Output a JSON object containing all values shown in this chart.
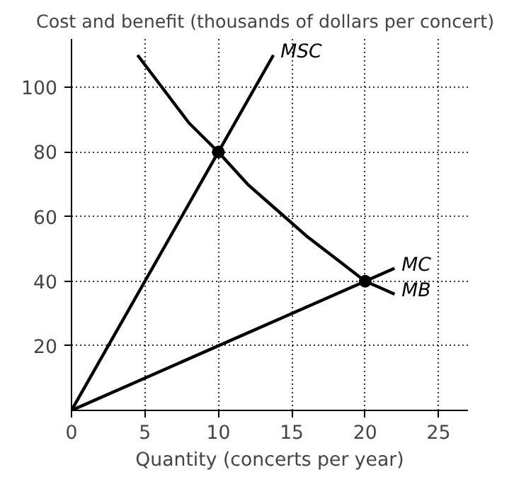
{
  "chart_data": {
    "type": "line",
    "title": "Cost and benefit (thousands of dollars per concert)",
    "xlabel": "Quantity (concerts per year)",
    "xlim": [
      0,
      27
    ],
    "ylim": [
      0,
      115
    ],
    "xticks": [
      0,
      5,
      10,
      15,
      20,
      25
    ],
    "yticks": [
      20,
      40,
      60,
      80,
      100
    ],
    "grid": true,
    "line_style": "solid",
    "marker": "none",
    "series": [
      {
        "name": "MSC",
        "color": "#000000",
        "x": [
          0,
          13.75
        ],
        "values": [
          0,
          110
        ]
      },
      {
        "name": "MC",
        "color": "#000000",
        "x": [
          0,
          22
        ],
        "values": [
          0,
          44
        ]
      },
      {
        "name": "MB",
        "color": "#000000",
        "x": [
          4.5,
          6,
          8,
          10,
          12,
          14,
          16,
          18,
          20,
          21,
          22
        ],
        "values": [
          110,
          101,
          89,
          80,
          70,
          62,
          54,
          47,
          40,
          38,
          36
        ]
      },
      {
        "type": "scatter",
        "marker": "circle",
        "color": "#000000",
        "x": [
          10,
          20
        ],
        "values": [
          80,
          40
        ]
      }
    ]
  }
}
